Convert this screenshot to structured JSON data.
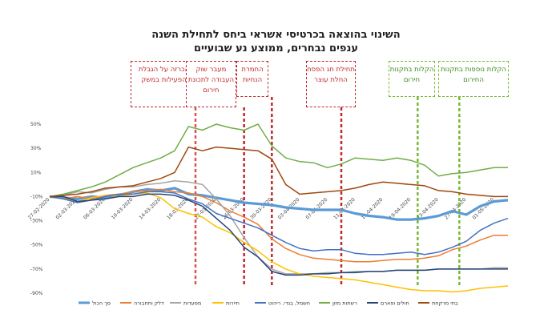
{
  "chart_data": {
    "type": "line",
    "title": "השינוי בהוצאה בכרטיסי אשראי ביחס לתחילת השנה",
    "subtitle": "ענפים נבחרים, ממוצע נע שבועיים",
    "xlabel": "",
    "ylabel": "",
    "ylim": [
      -90,
      50
    ],
    "yticks": [
      "50%",
      "30%",
      "10%",
      "-10%",
      "-30%",
      "-50%",
      "-70%",
      "-90%"
    ],
    "x": [
      "27-02-2020",
      "29-02-2020",
      "02-03-2020",
      "04-03-2020",
      "06-03-2020",
      "08-03-2020",
      "10-03-2020",
      "12-03-2020",
      "14-03-2020",
      "16-03-2020",
      "18-03-2020",
      "20-03-2020",
      "22-03-2020",
      "24-03-2020",
      "26-03-2020",
      "28-03-2020",
      "30-03-2020",
      "01-04-2020",
      "03-04-2020",
      "05-04-2020",
      "07-04-2020",
      "09-04-2020",
      "11-04-2020",
      "13-04-2020",
      "15-04-2020",
      "17-04-2020",
      "19-04-2020",
      "21-04-2020",
      "23-04-2020",
      "25-04-2020",
      "27-04-2020",
      "29-04-2020",
      "01-05-2020",
      "03-05-2020"
    ],
    "series": [
      {
        "name": "סך הכול",
        "color": "#5b9bd5",
        "values": [
          -10,
          -11,
          -12,
          -10,
          -11,
          -9,
          -6,
          -4,
          -5,
          -3,
          -8,
          -9,
          -11,
          -13,
          -15,
          -16,
          -17,
          -19,
          -20,
          -21,
          -21,
          -21,
          -24,
          -26,
          -27,
          -29,
          -29,
          -28,
          -26,
          -22,
          -25,
          -18,
          -14,
          -13
        ]
      },
      {
        "name": "דלק ותחבורה",
        "color": "#ed7d31",
        "values": [
          -10,
          -12,
          -10,
          -12,
          -9,
          -8,
          -6,
          -5,
          -4,
          -6,
          -7,
          -10,
          -15,
          -22,
          -27,
          -33,
          -45,
          -53,
          -58,
          -61,
          -62,
          -63,
          -64,
          -64,
          -63,
          -62,
          -62,
          -61,
          -59,
          -54,
          -51,
          -46,
          -42,
          -42
        ]
      },
      {
        "name": "מסעדות",
        "color": "#a5a5a5",
        "values": [
          -10,
          -9,
          -6,
          -7,
          -4,
          -2,
          -2,
          0,
          1,
          3,
          2,
          0,
          -12,
          -26,
          -44,
          -60,
          -70,
          -74,
          -74,
          -74,
          -73,
          -73,
          -72,
          -72,
          -72,
          -71,
          -71,
          -71,
          -70,
          -70,
          -70,
          -70,
          -69,
          -69
        ]
      },
      {
        "name": "תיירות",
        "color": "#ffc000",
        "values": [
          -10,
          -12,
          -14,
          -11,
          -9,
          -10,
          -8,
          -7,
          -11,
          -20,
          -24,
          -27,
          -35,
          -40,
          -48,
          -55,
          -64,
          -70,
          -74,
          -76,
          -77,
          -78,
          -79,
          -81,
          -83,
          -85,
          -87,
          -88,
          -88,
          -89,
          -88,
          -86,
          -85,
          -84
        ]
      },
      {
        "name": "חשמל, בגדי, ריהוט",
        "color": "#4472c4",
        "values": [
          -10,
          -12,
          -15,
          -13,
          -10,
          -8,
          -8,
          -6,
          -6,
          -7,
          -12,
          -16,
          -24,
          -28,
          -32,
          -36,
          -42,
          -48,
          -53,
          -55,
          -54,
          -54,
          -57,
          -58,
          -58,
          -57,
          -56,
          -58,
          -56,
          -52,
          -47,
          -38,
          -32,
          -28
        ]
      },
      {
        "name": "רשתות מזון",
        "color": "#70ad47",
        "values": [
          -10,
          -8,
          -5,
          -2,
          2,
          8,
          14,
          18,
          22,
          28,
          48,
          45,
          50,
          47,
          45,
          50,
          32,
          22,
          19,
          18,
          14,
          17,
          22,
          21,
          20,
          22,
          20,
          16,
          7,
          9,
          10,
          12,
          14,
          14
        ]
      },
      {
        "name": "חולים ופארם",
        "color": "#264478",
        "values": [
          -10,
          -10,
          -14,
          -13,
          -12,
          -10,
          -10,
          -8,
          -8,
          -9,
          -13,
          -18,
          -28,
          -38,
          -52,
          -60,
          -72,
          -75,
          -75,
          -74,
          -74,
          -73,
          -73,
          -72,
          -72,
          -71,
          -71,
          -71,
          -70,
          -70,
          -70,
          -70,
          -70,
          -70
        ]
      },
      {
        "name": "בתי מרקחת",
        "color": "#9e480e",
        "values": [
          -10,
          -9,
          -8,
          -6,
          -3,
          -2,
          -1,
          2,
          5,
          10,
          31,
          28,
          31,
          30,
          29,
          28,
          21,
          0,
          -8,
          -7,
          -6,
          -5,
          -3,
          0,
          2,
          1,
          0,
          -1,
          -5,
          -6,
          -8,
          -9,
          -10,
          -10
        ]
      }
    ],
    "annotations": [
      {
        "label": "הכרזה על הגבלת הפעילות במשק",
        "color": "#d9534f",
        "x_index": 10.5
      },
      {
        "label": "מעבר שוק העבודה לתכונת חירום",
        "color": "#c0282d",
        "x_index": 14
      },
      {
        "label": "החמרת הנחיות",
        "color": "#c0282d",
        "x_index": 16
      },
      {
        "label": "תחילת חג הפסח החלת עוצר",
        "color": "#c0282d",
        "x_index": 21
      },
      {
        "label": "הקלות בתקנות חירום",
        "color": "#78b832",
        "x_index": 26.5
      },
      {
        "label": "הקלות נוספות בתקנות החירום",
        "color": "#78b832",
        "x_index": 29.5
      }
    ],
    "grid": false,
    "legend_position": "bottom"
  }
}
